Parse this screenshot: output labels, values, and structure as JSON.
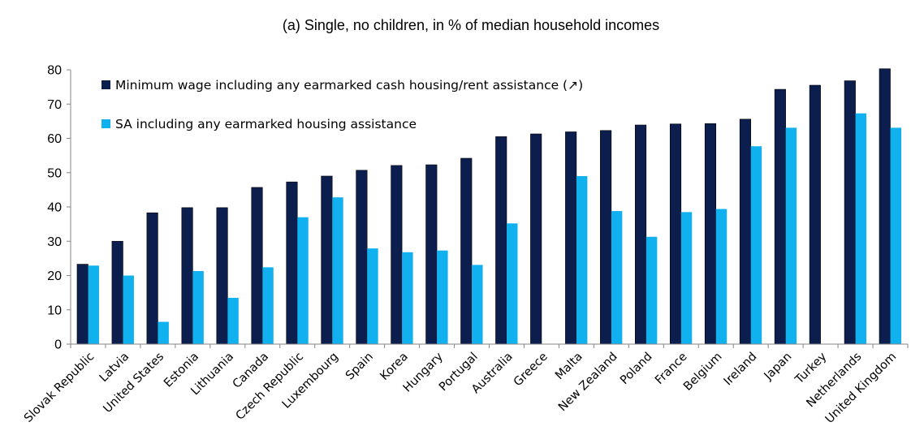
{
  "chart_data": {
    "type": "bar",
    "title": "(a) Single, no children, in % of median household incomes",
    "xlabel": "",
    "ylabel": "",
    "ylim": [
      0,
      80
    ],
    "yticks": [
      0,
      10,
      20,
      30,
      40,
      50,
      60,
      70,
      80
    ],
    "grid": false,
    "legend_position": "top-left",
    "categories": [
      "Slovak Republic",
      "Latvia",
      "United States",
      "Estonia",
      "Lithuania",
      "Canada",
      "Czech Republic",
      "Luxembourg",
      "Spain",
      "Korea",
      "Hungary",
      "Portugal",
      "Australia",
      "Greece",
      "Malta",
      "New Zealand",
      "Poland",
      "France",
      "Belgium",
      "Ireland",
      "Japan",
      "Turkey",
      "Netherlands",
      "United Kingdom"
    ],
    "series": [
      {
        "name": "Minimum wage including any earmarked cash housing/rent assistance (↗)",
        "color": "#0c1e4e",
        "values": [
          23.3,
          30.0,
          38.3,
          39.8,
          39.8,
          45.7,
          47.3,
          49.0,
          50.7,
          52.1,
          52.3,
          54.2,
          60.5,
          61.3,
          61.9,
          62.3,
          63.9,
          64.2,
          64.3,
          65.6,
          74.3,
          75.5,
          76.8,
          80.3
        ]
      },
      {
        "name": "SA including any earmarked housing assistance",
        "color": "#11b0ee",
        "values": [
          22.9,
          20.0,
          6.5,
          21.3,
          13.5,
          22.4,
          37.0,
          42.8,
          27.9,
          26.8,
          27.3,
          23.1,
          35.2,
          null,
          49.0,
          38.8,
          31.3,
          38.5,
          39.4,
          57.7,
          63.1,
          null,
          67.3,
          63.1
        ]
      }
    ]
  }
}
